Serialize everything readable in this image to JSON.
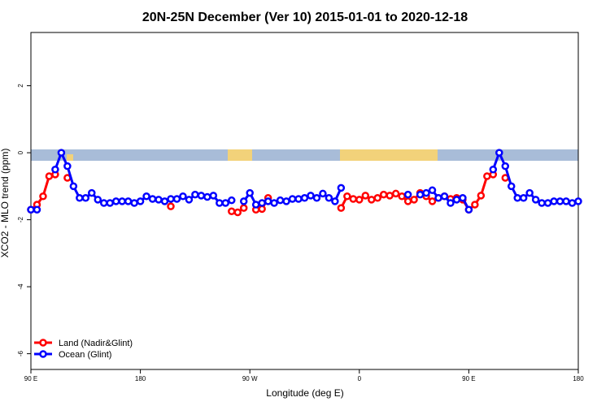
{
  "chart_data": {
    "type": "line",
    "title": "20N-25N December (Ver 10)   2015-01-01 to 2020-12-18",
    "x_label": "Longitude (deg E)",
    "y_label": "XCO2 - MLO trend (ppm)",
    "x": [
      90,
      95,
      100,
      105,
      110,
      115,
      120,
      125,
      130,
      135,
      140,
      145,
      150,
      155,
      160,
      165,
      170,
      175,
      180,
      185,
      190,
      195,
      200,
      205,
      210,
      215,
      220,
      225,
      230,
      235,
      240,
      245,
      250,
      255,
      260,
      265,
      270,
      275,
      280,
      285,
      290,
      295,
      300,
      305,
      310,
      315,
      320,
      325,
      330,
      335,
      340,
      345,
      350,
      355,
      360,
      365,
      370,
      375,
      380,
      385,
      390,
      395,
      400,
      405,
      410,
      415,
      420,
      425,
      430,
      435,
      440,
      445,
      450,
      455,
      460,
      465,
      470,
      475,
      480,
      485,
      490,
      495,
      500,
      505,
      510,
      515,
      520,
      525,
      530,
      535,
      540
    ],
    "series": [
      {
        "name": "Land (Nadir&Glint)",
        "color": "#ff0000",
        "values": [
          -1.7,
          -1.55,
          -1.3,
          -0.7,
          -0.65,
          null,
          -0.75,
          null,
          null,
          null,
          null,
          null,
          null,
          null,
          null,
          null,
          null,
          null,
          null,
          null,
          null,
          null,
          null,
          -1.6,
          null,
          null,
          null,
          null,
          null,
          null,
          null,
          null,
          null,
          -1.75,
          -1.78,
          -1.65,
          null,
          -1.7,
          -1.68,
          -1.35,
          null,
          null,
          null,
          null,
          null,
          null,
          null,
          null,
          null,
          null,
          null,
          -1.65,
          -1.3,
          -1.38,
          -1.4,
          -1.28,
          -1.4,
          -1.35,
          -1.25,
          -1.28,
          -1.22,
          -1.3,
          -1.45,
          -1.4,
          -1.2,
          -1.3,
          -1.45,
          -1.35,
          -1.3,
          -1.38,
          -1.35,
          -1.4,
          -1.7,
          -1.55,
          -1.28,
          -0.7,
          -0.65,
          null,
          -0.75,
          null,
          null,
          null,
          null,
          null,
          null,
          null,
          null,
          null,
          null,
          null,
          null
        ]
      },
      {
        "name": "Ocean (Glint)",
        "color": "#0000ff",
        "values": [
          -1.7,
          -1.7,
          null,
          null,
          -0.5,
          0,
          -0.4,
          -1.0,
          -1.35,
          -1.35,
          -1.2,
          -1.4,
          -1.5,
          -1.5,
          -1.45,
          -1.45,
          -1.45,
          -1.5,
          -1.45,
          -1.3,
          -1.38,
          -1.4,
          -1.45,
          -1.38,
          -1.38,
          -1.3,
          -1.4,
          -1.25,
          -1.28,
          -1.32,
          -1.28,
          -1.5,
          -1.5,
          -1.42,
          null,
          -1.45,
          -1.2,
          -1.55,
          -1.5,
          -1.45,
          -1.5,
          -1.42,
          -1.45,
          -1.38,
          -1.38,
          -1.35,
          -1.28,
          -1.35,
          -1.22,
          -1.35,
          -1.45,
          -1.05,
          null,
          null,
          null,
          null,
          null,
          null,
          null,
          null,
          null,
          null,
          -1.25,
          null,
          -1.25,
          -1.2,
          -1.12,
          -1.35,
          -1.3,
          -1.5,
          -1.4,
          -1.35,
          -1.7,
          null,
          null,
          null,
          -0.5,
          0,
          -0.4,
          -1.0,
          -1.35,
          -1.35,
          -1.2,
          -1.4,
          -1.5,
          -1.5,
          -1.45,
          -1.45,
          -1.45,
          -1.5,
          -1.45
        ]
      }
    ],
    "xlim": [
      90,
      540
    ],
    "ylim": [
      -6.47,
      3.59
    ],
    "xticks": [
      {
        "value": 90,
        "label": "90 E"
      },
      {
        "value": 180,
        "label": "180"
      },
      {
        "value": 270,
        "label": "90 W"
      },
      {
        "value": 360,
        "label": "0"
      },
      {
        "value": 450,
        "label": "90 E"
      },
      {
        "value": 540,
        "label": "180"
      }
    ],
    "yticks": [
      -6,
      -4,
      -2,
      0,
      2
    ],
    "legend": "bottom-left"
  }
}
